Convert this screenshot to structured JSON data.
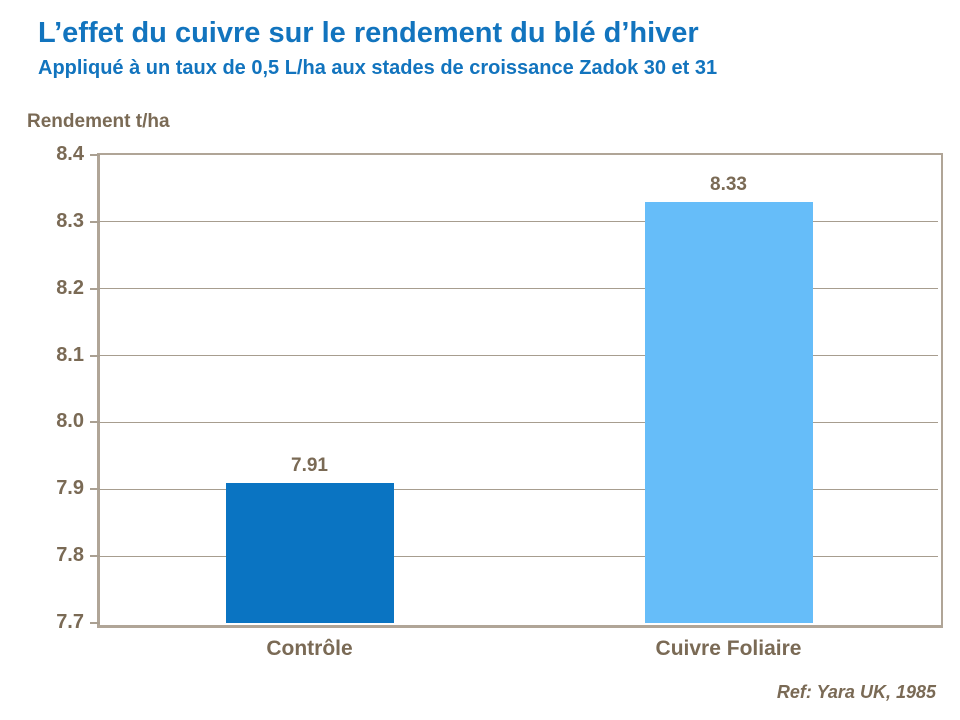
{
  "footer": {
    "reference": "Ref: Yara UK, 1985"
  },
  "colors": {
    "title_blue": "#1274be",
    "text_brown": "#7a6a55",
    "gridline": "#a79d8f",
    "plot_border": "#b0a597",
    "bar_control": "#0a74c2",
    "bar_copper": "#66bdf9"
  },
  "chart_data": {
    "type": "bar",
    "title": "L’effet du cuivre sur le rendement du blé d’hiver",
    "subtitle": "Appliqué à un taux de 0,5 L/ha aux stades de croissance Zadok 30 et 31",
    "ylabel": "Rendement t/ha",
    "xlabel": "",
    "categories": [
      "Contrôle",
      "Cuivre Foliaire"
    ],
    "values": [
      7.91,
      8.33
    ],
    "value_labels": [
      "7.91",
      "8.33"
    ],
    "bar_colors": [
      "#0a74c2",
      "#66bdf9"
    ],
    "ylim": [
      7.7,
      8.4
    ],
    "ytick_step": 0.1,
    "yticks": [
      8.4,
      8.3,
      8.2,
      8.1,
      8.0,
      7.9,
      7.8,
      7.7
    ],
    "ytick_labels": [
      "8.4",
      "8.3",
      "8.2",
      "8.1",
      "8.0",
      "7.9",
      "7.8",
      "7.7"
    ],
    "grid": "horizontal",
    "legend": "none",
    "annotation": "Ref: Yara UK, 1985"
  }
}
